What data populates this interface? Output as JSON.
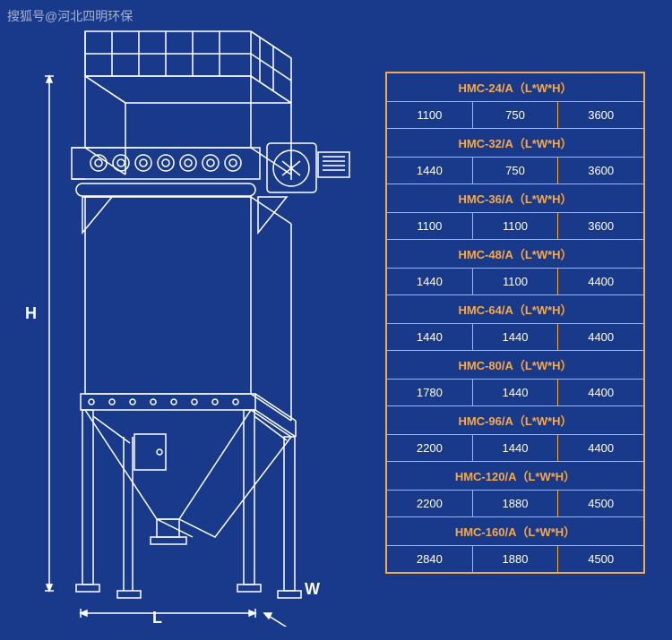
{
  "watermark": "搜狐号@河北四明环保",
  "dimensions": {
    "H": "H",
    "L": "L",
    "W": "W"
  },
  "specs": [
    {
      "model": "HMC-24/A（L*W*H）",
      "L": "1100",
      "W": "750",
      "H": "3600"
    },
    {
      "model": "HMC-32/A（L*W*H）",
      "L": "1440",
      "W": "750",
      "H": "3600"
    },
    {
      "model": "HMC-36/A（L*W*H）",
      "L": "1100",
      "W": "1100",
      "H": "3600"
    },
    {
      "model": "HMC-48/A（L*W*H）",
      "L": "1440",
      "W": "1100",
      "H": "4400"
    },
    {
      "model": "HMC-64/A（L*W*H）",
      "L": "1440",
      "W": "1440",
      "H": "4400"
    },
    {
      "model": "HMC-80/A（L*W*H）",
      "L": "1780",
      "W": "1440",
      "H": "4400"
    },
    {
      "model": "HMC-96/A（L*W*H）",
      "L": "2200",
      "W": "1440",
      "H": "4400"
    },
    {
      "model": "HMC-120/A（L*W*H）",
      "L": "2200",
      "W": "1880",
      "H": "4500"
    },
    {
      "model": "HMC-160/A（L*W*H）",
      "L": "2840",
      "W": "1880",
      "H": "4500"
    }
  ],
  "style": {
    "bg": "#193a8a",
    "line_color": "#ffffff",
    "accent_color": "#f5a94e",
    "text_color": "#ffffff",
    "header_fontsize": 13,
    "cell_fontsize": 13,
    "stroke_width": 1.5
  }
}
